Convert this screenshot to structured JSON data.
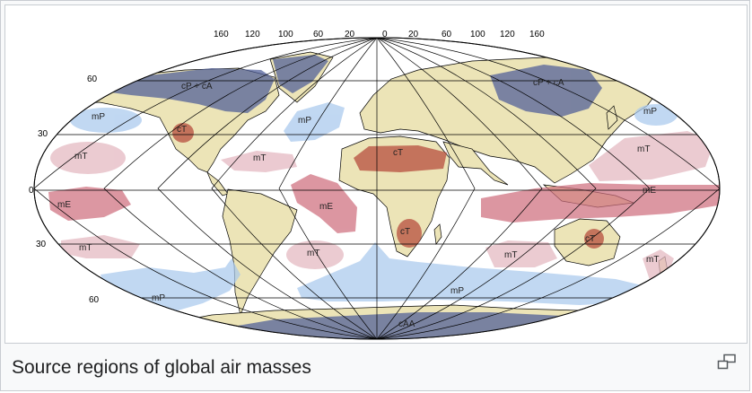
{
  "caption": "Source regions of global air masses",
  "longitude_labels": [
    "160",
    "120",
    "100",
    "60",
    "20",
    "0",
    "20",
    "60",
    "100",
    "120",
    "160"
  ],
  "latitude_labels": [
    "60",
    "30",
    "0",
    "30",
    "60"
  ],
  "air_masses": [
    {
      "code": "cP + cA"
    },
    {
      "code": "cP + cA"
    },
    {
      "code": "mP"
    },
    {
      "code": "mP"
    },
    {
      "code": "mP"
    },
    {
      "code": "cT"
    },
    {
      "code": "mT"
    },
    {
      "code": "mT"
    },
    {
      "code": "cT"
    },
    {
      "code": "mT"
    },
    {
      "code": "mE"
    },
    {
      "code": "mE"
    },
    {
      "code": "mE"
    },
    {
      "code": "cT"
    },
    {
      "code": "cT"
    },
    {
      "code": "mT"
    },
    {
      "code": "mT"
    },
    {
      "code": "mT"
    },
    {
      "code": "mT"
    },
    {
      "code": "mP"
    },
    {
      "code": "mP"
    },
    {
      "code": "cAA"
    }
  ],
  "colors": {
    "land": "#ece4b7",
    "ocean": "#ffffff",
    "polar": "#4d5c98",
    "maritime_polar": "#a9c9ee",
    "tropical_maritime": "#e4b7c0",
    "equatorial": "#cf6f7e",
    "continental_tropical": "#b5483a"
  }
}
